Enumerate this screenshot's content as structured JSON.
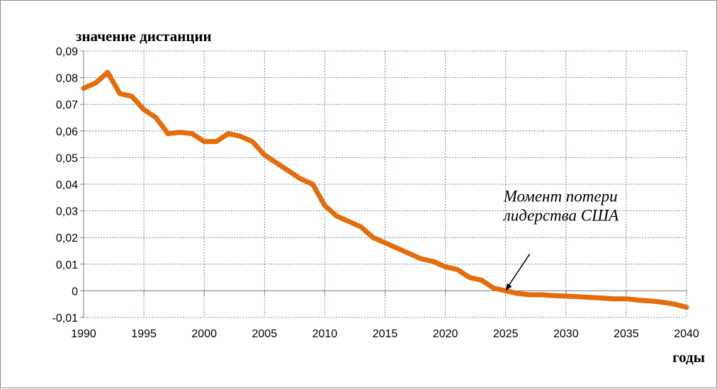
{
  "chart_data": {
    "type": "line",
    "ylabel": "значение дистанции",
    "xlabel": "годы",
    "xlim": [
      1990,
      2040
    ],
    "ylim": [
      -0.01,
      0.09
    ],
    "x_ticks": [
      1990,
      1995,
      2000,
      2005,
      2010,
      2015,
      2020,
      2025,
      2030,
      2035,
      2040
    ],
    "y_ticks": [
      "-0,01",
      "0",
      "0,01",
      "0,02",
      "0,03",
      "0,04",
      "0,05",
      "0,06",
      "0,07",
      "0,08",
      "0,09"
    ],
    "y_tick_values": [
      -0.01,
      0,
      0.01,
      0.02,
      0.03,
      0.04,
      0.05,
      0.06,
      0.07,
      0.08,
      0.09
    ],
    "grid": true,
    "line_color": "#E46C0A",
    "annotation": {
      "line1": "Момент потери",
      "line2": "лидерства США",
      "x": 2025,
      "y": 0
    },
    "series": [
      {
        "x": [
          1990,
          1991,
          1992,
          1993,
          1994,
          1995,
          1996,
          1997,
          1998,
          1999,
          2000,
          2001,
          2002,
          2003,
          2004,
          2005,
          2006,
          2007,
          2008,
          2009,
          2010,
          2011,
          2012,
          2013,
          2014,
          2015,
          2016,
          2017,
          2018,
          2019,
          2020,
          2021,
          2022,
          2023,
          2024,
          2025,
          2026,
          2027,
          2028,
          2029,
          2030,
          2031,
          2032,
          2033,
          2034,
          2035,
          2036,
          2037,
          2038,
          2039,
          2040
        ],
        "y": [
          0.076,
          0.078,
          0.082,
          0.074,
          0.073,
          0.068,
          0.065,
          0.059,
          0.0595,
          0.059,
          0.056,
          0.056,
          0.059,
          0.058,
          0.056,
          0.051,
          0.048,
          0.045,
          0.042,
          0.04,
          0.032,
          0.028,
          0.026,
          0.024,
          0.02,
          0.018,
          0.016,
          0.014,
          0.012,
          0.011,
          0.009,
          0.008,
          0.005,
          0.004,
          0.001,
          0.0,
          -0.001,
          -0.0015,
          -0.0015,
          -0.0018,
          -0.002,
          -0.0022,
          -0.0025,
          -0.0027,
          -0.003,
          -0.003,
          -0.0035,
          -0.0038,
          -0.0043,
          -0.005,
          -0.0062
        ]
      }
    ]
  }
}
